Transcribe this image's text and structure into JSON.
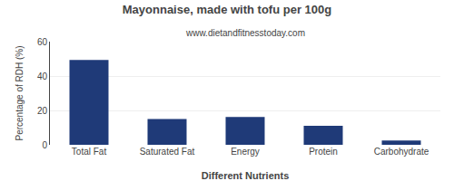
{
  "chart_data": {
    "type": "bar",
    "title": "Mayonnaise, made with tofu per 100g",
    "subtitle": "www.dietandfitnesstoday.com",
    "xlabel": "Different Nutrients",
    "ylabel": "Percentage of RDH (%)",
    "categories": [
      "Total Fat",
      "Saturated Fat",
      "Energy",
      "Protein",
      "Carbohydrate"
    ],
    "values": [
      49.4,
      15.0,
      16.2,
      11.0,
      2.5
    ],
    "color": "#1F3A78",
    "ylim": [
      0,
      60
    ],
    "yticks": [
      0,
      20,
      40,
      60
    ],
    "grid": true
  }
}
